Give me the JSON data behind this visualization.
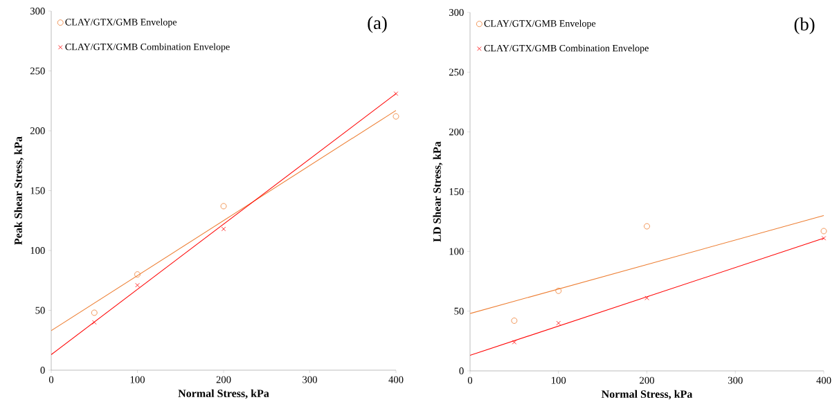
{
  "chart_data": [
    {
      "type": "scatter",
      "title": "(a)",
      "xlabel": "Normal Stress, kPa",
      "ylabel": "Peak Shear Stress, kPa",
      "xlim": [
        0,
        400
      ],
      "ylim": [
        0,
        300
      ],
      "xticks": [
        0,
        100,
        200,
        300,
        400
      ],
      "yticks": [
        0,
        50,
        100,
        150,
        200,
        250,
        300
      ],
      "legend": "top left",
      "grid": false,
      "series": [
        {
          "name": "CLAY/GTX/GMB Envelope",
          "color": "#ed7d31",
          "marker": "circle",
          "x": [
            50,
            100,
            200,
            400
          ],
          "values": [
            48,
            80,
            137,
            212
          ]
        },
        {
          "name": "CLAY/GTX/GMB Combination Envelope",
          "color": "#ff0000",
          "marker": "cross",
          "x": [
            50,
            100,
            200,
            400
          ],
          "values": [
            40,
            71,
            118,
            231
          ]
        },
        {
          "type": "line",
          "color": "#ed7d31",
          "marker": "none",
          "x": [
            0,
            400
          ],
          "values": [
            33,
            217
          ]
        },
        {
          "type": "line",
          "color": "#ff0000",
          "marker": "none",
          "x": [
            0,
            400
          ],
          "values": [
            13,
            231
          ]
        }
      ]
    },
    {
      "type": "scatter",
      "title": "(b)",
      "xlabel": "Normal Stress, kPa",
      "ylabel": "LD Shear Stress, kPa",
      "xlim": [
        0,
        400
      ],
      "ylim": [
        0,
        300
      ],
      "xticks": [
        0,
        100,
        200,
        300,
        400
      ],
      "yticks": [
        0,
        50,
        100,
        150,
        200,
        250,
        300
      ],
      "legend": "top left",
      "grid": false,
      "series": [
        {
          "name": "CLAY/GTX/GMB Envelope",
          "color": "#ed7d31",
          "marker": "circle",
          "x": [
            50,
            100,
            200,
            400
          ],
          "values": [
            42,
            67,
            121,
            117
          ]
        },
        {
          "name": "CLAY/GTX/GMB Combination Envelope",
          "color": "#ff0000",
          "marker": "cross",
          "x": [
            50,
            100,
            200,
            400
          ],
          "values": [
            24,
            40,
            61,
            111
          ]
        },
        {
          "type": "line",
          "color": "#ed7d31",
          "marker": "none",
          "x": [
            0,
            400
          ],
          "values": [
            48,
            130
          ]
        },
        {
          "type": "line",
          "color": "#ff0000",
          "marker": "none",
          "x": [
            0,
            400
          ],
          "values": [
            13,
            111
          ]
        }
      ]
    }
  ]
}
